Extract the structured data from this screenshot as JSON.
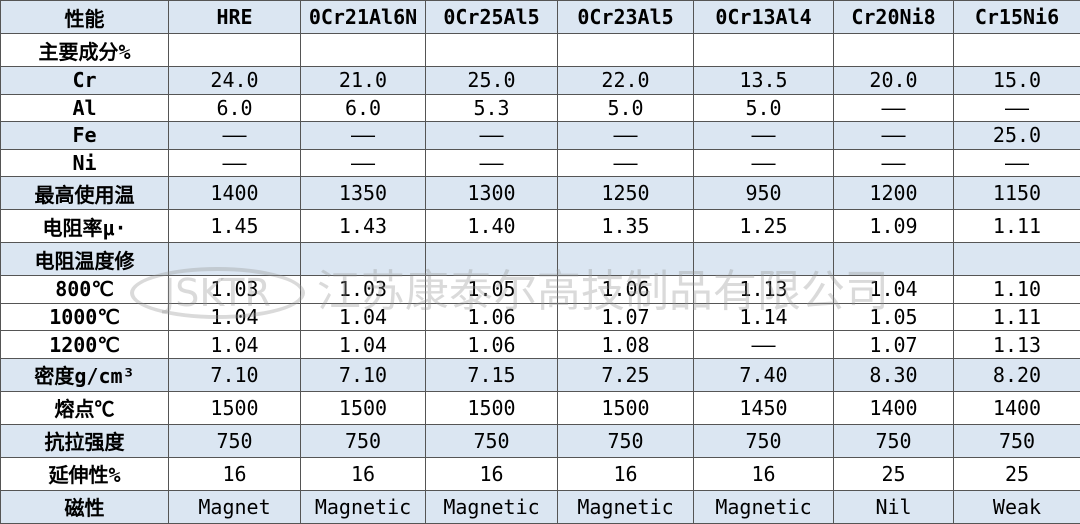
{
  "table": {
    "header": [
      "性能",
      "HRE",
      "0Cr21Al6N",
      "0Cr25Al5",
      "0Cr23Al5",
      "0Cr13Al4",
      "Cr20Ni8",
      "Cr15Ni6"
    ],
    "rows": [
      [
        "主要成分%",
        null,
        null,
        null,
        null,
        null,
        null,
        null
      ],
      [
        "Cr",
        "24.0",
        "21.0",
        "25.0",
        "22.0",
        "13.5",
        "20.0",
        "15.0"
      ],
      [
        "Al",
        "6.0",
        "6.0",
        "5.3",
        "5.0",
        "5.0",
        "——",
        "——"
      ],
      [
        "Fe",
        "——",
        "——",
        "——",
        "——",
        "——",
        "——",
        "25.0"
      ],
      [
        "Ni",
        "——",
        "——",
        "——",
        "——",
        "——",
        "——",
        "——"
      ],
      [
        "最高使用温",
        "1400",
        "1350",
        "1300",
        "1250",
        "950",
        "1200",
        "1150"
      ],
      [
        "电阻率μ·",
        "1.45",
        "1.43",
        "1.40",
        "1.35",
        "1.25",
        "1.09",
        "1.11"
      ],
      [
        "电阻温度修",
        null,
        null,
        null,
        null,
        null,
        null,
        null
      ],
      [
        "800℃",
        "1.03",
        "1.03",
        "1.05",
        "1.06",
        "1.13",
        "1.04",
        "1.10"
      ],
      [
        "1000℃",
        "1.04",
        "1.04",
        "1.06",
        "1.07",
        "1.14",
        "1.05",
        "1.11"
      ],
      [
        "1200℃",
        "1.04",
        "1.04",
        "1.06",
        "1.08",
        "——",
        "1.07",
        "1.13"
      ],
      [
        "密度g/cm³",
        "7.10",
        "7.10",
        "7.15",
        "7.25",
        "7.40",
        "8.30",
        "8.20"
      ],
      [
        "熔点℃",
        "1500",
        "1500",
        "1500",
        "1500",
        "1450",
        "1400",
        "1400"
      ],
      [
        "抗拉强度",
        "750",
        "750",
        "750",
        "750",
        "750",
        "750",
        "750"
      ],
      [
        "延伸性%",
        "16",
        "16",
        "16",
        "16",
        "16",
        "25",
        "25"
      ],
      [
        "磁性",
        "Magnet",
        "Magnetic",
        "Magnetic",
        "Magnetic",
        "Magnetic",
        "Nil",
        "Weak"
      ]
    ]
  },
  "watermark": {
    "logo": "JSKTR",
    "company": "江苏康泰尔高技制品有限公司"
  }
}
